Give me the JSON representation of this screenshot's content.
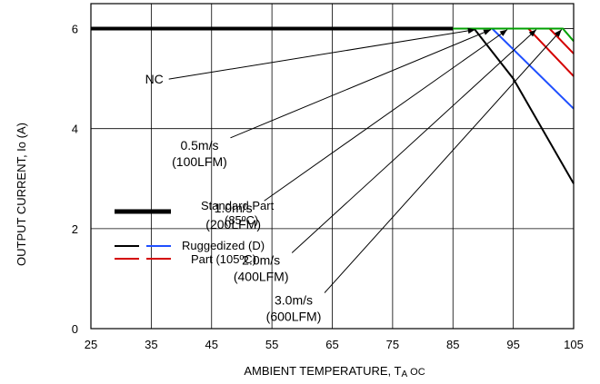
{
  "chart_data": {
    "type": "line",
    "xlabel": "AMBIENT TEMPERATURE, T",
    "xlabel_sub": "A",
    "xlabel_unit": "OC",
    "ylabel": "OUTPUT CURRENT, Io (A)",
    "xlim": [
      25,
      105
    ],
    "ylim": [
      0,
      6.5
    ],
    "x_ticks": [
      "25",
      "35",
      "45",
      "55",
      "65",
      "75",
      "85",
      "95",
      "105"
    ],
    "y_ticks": [
      "0",
      "2",
      "4",
      "6"
    ],
    "grid": true,
    "series": [
      {
        "name": "NC",
        "color": "#000000",
        "x": [
          25,
          88.5,
          95,
          105
        ],
        "y": [
          6.0,
          6.0,
          5.0,
          2.9
        ]
      },
      {
        "name": "0.5m/s (100LFM)",
        "color": "#1f4fff",
        "x": [
          25,
          91.5,
          105
        ],
        "y": [
          6.0,
          6.0,
          4.4
        ]
      },
      {
        "name": "1.0m/s (200LFM)",
        "color": "#d40000",
        "x": [
          25,
          97.5,
          105
        ],
        "y": [
          6.0,
          6.0,
          5.05
        ]
      },
      {
        "name": "2.0m/s (400LFM)",
        "color": "#d40000",
        "x": [
          25,
          101,
          105
        ],
        "y": [
          6.0,
          6.0,
          5.5
        ]
      },
      {
        "name": "3.0m/s (600LFM)",
        "color": "#00a000",
        "x": [
          25,
          103.2,
          105
        ],
        "y": [
          6.0,
          6.0,
          5.75
        ]
      },
      {
        "name": "Standard Part (85ºC)",
        "color": "#000000",
        "x": [
          25,
          85
        ],
        "y": [
          6.0,
          6.0
        ]
      }
    ],
    "annotations": [
      {
        "lines": [
          "NC"
        ],
        "x": 35.5,
        "y": 4.9,
        "tx": 88.7,
        "ty": 5.98
      },
      {
        "lines": [
          "0.5m/s",
          "(100LFM)"
        ],
        "x": 43.0,
        "y": 3.58,
        "tx": 91.3,
        "ty": 5.98
      },
      {
        "lines": [
          "1.0m/s",
          "(200LFM)"
        ],
        "x": 48.6,
        "y": 2.32,
        "tx": 94.0,
        "ty": 5.98
      },
      {
        "lines": [
          "2.0m/s",
          "(400LFM)"
        ],
        "x": 53.2,
        "y": 1.28,
        "tx": 98.8,
        "ty": 5.98
      },
      {
        "lines": [
          "3.0m/s",
          "(600LFM)"
        ],
        "x": 58.6,
        "y": 0.48,
        "tx": 103.0,
        "ty": 5.98
      }
    ],
    "legend": {
      "placement": "lower-left",
      "standard": {
        "lines": [
          "Standard Part",
          "(85ºC)"
        ]
      },
      "ruggedized": {
        "lines": [
          "Ruggedized (D)",
          "Part (105ºC)"
        ]
      }
    }
  }
}
